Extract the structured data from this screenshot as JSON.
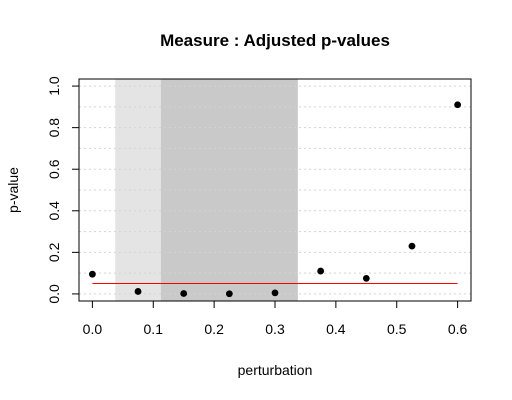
{
  "chart_data": {
    "type": "scatter",
    "title": "Measure : Adjusted p-values",
    "xlabel": "perturbation",
    "ylabel": "p-value",
    "xlim": [
      -0.022,
      0.622
    ],
    "ylim": [
      -0.034,
      1.034
    ],
    "x_ticks": [
      0.0,
      0.1,
      0.2,
      0.3,
      0.4,
      0.5,
      0.6
    ],
    "x_tick_labels": [
      "0.0",
      "0.1",
      "0.2",
      "0.3",
      "0.4",
      "0.5",
      "0.6"
    ],
    "y_ticks": [
      0.0,
      0.2,
      0.4,
      0.6,
      0.8,
      1.0
    ],
    "y_tick_labels": [
      "0.0",
      "0.2",
      "0.4",
      "0.6",
      "0.8",
      "1.0"
    ],
    "grid": true,
    "points": [
      {
        "x": 0.0,
        "y": 0.095
      },
      {
        "x": 0.075,
        "y": 0.012
      },
      {
        "x": 0.15,
        "y": 0.002
      },
      {
        "x": 0.225,
        "y": 0.001
      },
      {
        "x": 0.3,
        "y": 0.005
      },
      {
        "x": 0.375,
        "y": 0.11
      },
      {
        "x": 0.45,
        "y": 0.075
      },
      {
        "x": 0.525,
        "y": 0.23
      },
      {
        "x": 0.6,
        "y": 0.91
      }
    ],
    "threshold": {
      "y": 0.05,
      "x_range": [
        0.0,
        0.6
      ],
      "color": "#ff0000"
    },
    "shaded_regions": [
      {
        "x_range": [
          0.0375,
          0.1125
        ],
        "color": "#e4e4e4"
      },
      {
        "x_range": [
          0.1125,
          0.3375
        ],
        "color": "#c9c9c9"
      }
    ],
    "point_color": "#000000",
    "grid_color": "#d3d3d3"
  }
}
